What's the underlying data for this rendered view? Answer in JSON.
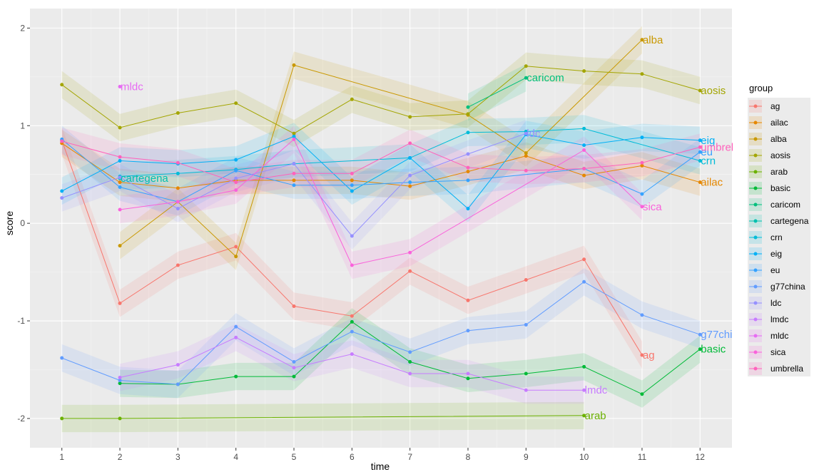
{
  "chart_data": {
    "type": "line",
    "xlabel": "time",
    "ylabel": "score",
    "x_ticks": [
      1,
      2,
      3,
      4,
      5,
      6,
      7,
      8,
      9,
      10,
      11,
      12
    ],
    "y_ticks": [
      -2,
      -1,
      0,
      1,
      2
    ],
    "xlim": [
      0.45,
      12.55
    ],
    "ylim": [
      -2.3,
      2.2
    ],
    "grid": true,
    "legend": {
      "title": "group",
      "position": "right"
    },
    "series": [
      {
        "name": "ag",
        "color": "#F8766D",
        "label": "ag",
        "points": [
          [
            1,
            0.85
          ],
          [
            2,
            -0.82
          ],
          [
            3,
            -0.43
          ],
          [
            4,
            -0.24
          ],
          [
            5,
            -0.85
          ],
          [
            6,
            -0.95
          ],
          [
            7,
            -0.49
          ],
          [
            8,
            -0.79
          ],
          [
            9,
            -0.58
          ],
          [
            10,
            -0.37
          ],
          [
            11,
            -1.35
          ]
        ]
      },
      {
        "name": "ailac",
        "color": "#E58700",
        "label": "ailac",
        "points": [
          [
            1,
            0.82
          ],
          [
            2,
            0.42
          ],
          [
            3,
            0.36
          ],
          [
            4,
            0.44
          ],
          [
            5,
            0.44
          ],
          [
            6,
            0.44
          ],
          [
            7,
            0.38
          ],
          [
            8,
            0.53
          ],
          [
            9,
            0.69
          ],
          [
            10,
            0.49
          ],
          [
            11,
            0.59
          ],
          [
            12,
            0.42
          ]
        ]
      },
      {
        "name": "alba",
        "color": "#C99800",
        "label": "alba",
        "points": [
          [
            2,
            -0.23
          ],
          [
            3,
            0.22
          ],
          [
            4,
            -0.34
          ],
          [
            5,
            1.62
          ],
          [
            8,
            1.11
          ],
          [
            9,
            0.72
          ],
          [
            11,
            1.88
          ]
        ]
      },
      {
        "name": "aosis",
        "color": "#A3A500",
        "label": "aosis",
        "points": [
          [
            1,
            1.42
          ],
          [
            2,
            0.98
          ],
          [
            3,
            1.13
          ],
          [
            4,
            1.23
          ],
          [
            5,
            0.92
          ],
          [
            6,
            1.27
          ],
          [
            7,
            1.09
          ],
          [
            8,
            1.12
          ],
          [
            9,
            1.61
          ],
          [
            10,
            1.56
          ],
          [
            11,
            1.53
          ],
          [
            12,
            1.36
          ]
        ]
      },
      {
        "name": "arab",
        "color": "#6BB100",
        "label": "arab",
        "points": [
          [
            1,
            -2.0
          ],
          [
            2,
            -2.0
          ],
          [
            10,
            -1.97
          ]
        ]
      },
      {
        "name": "basic",
        "color": "#00BA38",
        "label": "basic",
        "points": [
          [
            2,
            -1.64
          ],
          [
            3,
            -1.65
          ],
          [
            4,
            -1.57
          ],
          [
            5,
            -1.57
          ],
          [
            6,
            -1.01
          ],
          [
            7,
            -1.42
          ],
          [
            8,
            -1.59
          ],
          [
            9,
            -1.54
          ],
          [
            10,
            -1.47
          ],
          [
            11,
            -1.75
          ],
          [
            12,
            -1.29
          ]
        ]
      },
      {
        "name": "caricom",
        "color": "#00BF7D",
        "label": "caricom",
        "points": [
          [
            8,
            1.19
          ],
          [
            9,
            1.49
          ]
        ]
      },
      {
        "name": "cartegena",
        "color": "#00C0AF",
        "label": "cartegena",
        "points": [
          [
            2,
            0.46
          ]
        ]
      },
      {
        "name": "crn",
        "color": "#00BCD8",
        "label": "crn",
        "points": [
          [
            2,
            0.48
          ],
          [
            3,
            0.51
          ],
          [
            4,
            0.55
          ],
          [
            5,
            0.61
          ],
          [
            7,
            0.67
          ],
          [
            8,
            0.93
          ],
          [
            9,
            0.94
          ],
          [
            10,
            0.97
          ],
          [
            12,
            0.64
          ]
        ]
      },
      {
        "name": "eig",
        "color": "#00B0F6",
        "label": "eig",
        "points": [
          [
            1,
            0.33
          ],
          [
            2,
            0.64
          ],
          [
            3,
            0.61
          ],
          [
            4,
            0.65
          ],
          [
            5,
            0.89
          ],
          [
            6,
            0.33
          ],
          [
            7,
            0.67
          ],
          [
            8,
            0.15
          ],
          [
            9,
            0.91
          ],
          [
            10,
            0.8
          ],
          [
            11,
            0.88
          ],
          [
            12,
            0.85
          ]
        ]
      },
      {
        "name": "eu",
        "color": "#35A2FF",
        "label": "eu",
        "points": [
          [
            1,
            0.86
          ],
          [
            2,
            0.37
          ],
          [
            3,
            0.22
          ],
          [
            4,
            0.54
          ],
          [
            5,
            0.39
          ],
          [
            6,
            0.39
          ],
          [
            7,
            0.42
          ],
          [
            8,
            0.44
          ],
          [
            10,
            0.56
          ],
          [
            11,
            0.3
          ],
          [
            12,
            0.73
          ]
        ]
      },
      {
        "name": "g77china",
        "color": "#619CFF",
        "label": "g77chi",
        "points": [
          [
            1,
            -1.38
          ],
          [
            2,
            -1.61
          ],
          [
            3,
            -1.65
          ],
          [
            4,
            -1.06
          ],
          [
            5,
            -1.42
          ],
          [
            6,
            -1.11
          ],
          [
            7,
            -1.32
          ],
          [
            8,
            -1.1
          ],
          [
            9,
            -1.04
          ],
          [
            10,
            -0.6
          ],
          [
            11,
            -0.94
          ],
          [
            12,
            -1.14
          ]
        ]
      },
      {
        "name": "ldc",
        "color": "#9590FF",
        "label": "ldc",
        "points": [
          [
            1,
            0.26
          ],
          [
            2,
            0.47
          ],
          [
            3,
            0.15
          ],
          [
            4,
            0.46
          ],
          [
            5,
            0.61
          ],
          [
            6,
            -0.13
          ],
          [
            7,
            0.49
          ],
          [
            8,
            0.71
          ],
          [
            9,
            0.92
          ]
        ]
      },
      {
        "name": "lmdc",
        "color": "#C77CFF",
        "label": "lmdc",
        "points": [
          [
            2,
            -1.58
          ],
          [
            3,
            -1.45
          ],
          [
            4,
            -1.17
          ],
          [
            5,
            -1.48
          ],
          [
            6,
            -1.34
          ],
          [
            7,
            -1.54
          ],
          [
            8,
            -1.54
          ],
          [
            9,
            -1.71
          ],
          [
            10,
            -1.71
          ]
        ]
      },
      {
        "name": "mldc",
        "color": "#E76BF3",
        "label": "mldc",
        "points": [
          [
            2,
            1.4
          ]
        ]
      },
      {
        "name": "sica",
        "color": "#FA62DB",
        "label": "sica",
        "points": [
          [
            2,
            0.14
          ],
          [
            3,
            0.22
          ],
          [
            4,
            0.34
          ],
          [
            5,
            0.86
          ],
          [
            6,
            -0.43
          ],
          [
            7,
            -0.3
          ],
          [
            10,
            0.75
          ],
          [
            11,
            0.17
          ]
        ]
      },
      {
        "name": "umbrella",
        "color": "#FF62BC",
        "label": "umbrel",
        "points": [
          [
            1,
            0.84
          ],
          [
            2,
            0.68
          ],
          [
            3,
            0.62
          ],
          [
            4,
            0.42
          ],
          [
            5,
            0.51
          ],
          [
            6,
            0.51
          ],
          [
            7,
            0.82
          ],
          [
            8,
            0.57
          ],
          [
            9,
            0.54
          ],
          [
            10,
            0.56
          ],
          [
            11,
            0.62
          ],
          [
            12,
            0.78
          ]
        ]
      }
    ]
  }
}
